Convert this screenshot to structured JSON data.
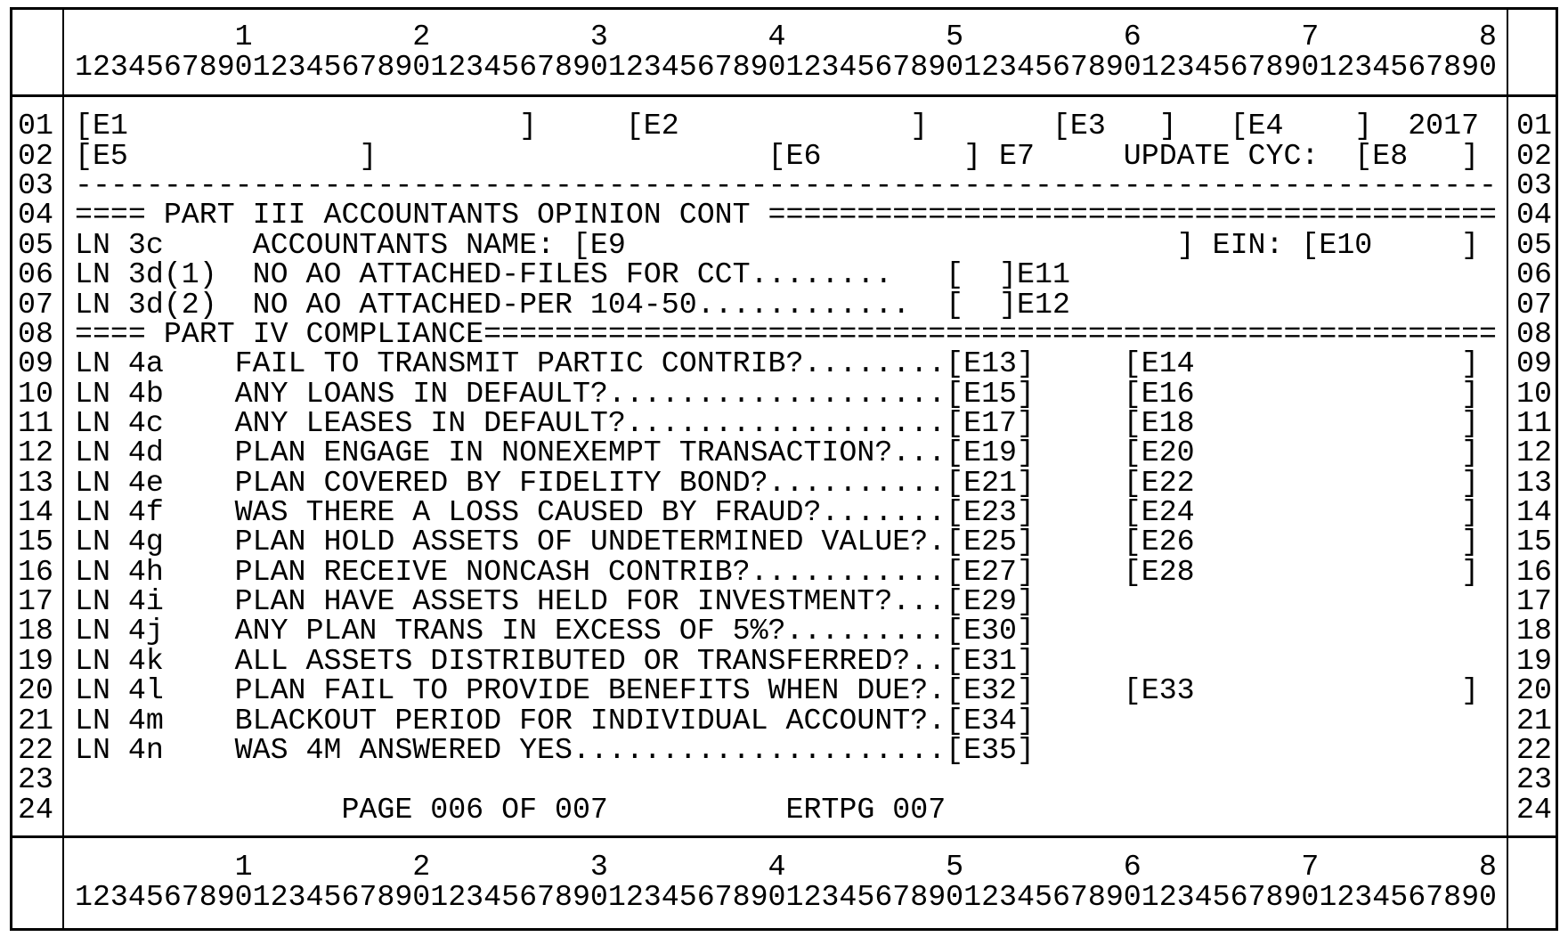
{
  "ruler": {
    "tens": "         1         2         3         4         5         6         7         8",
    "units": "12345678901234567890123456789012345678901234567890123456789012345678901234567890"
  },
  "screen": {
    "rows": [
      {
        "num": "01",
        "text": "[E1                      ]     [E2             ]       [E3   ]   [E4    ]  2017"
      },
      {
        "num": "02",
        "text": "[E5             ]                      [E6        ] E7     UPDATE CYC:  [E8   ]"
      },
      {
        "num": "03",
        "text": "--------------------------------------------------------------------------------"
      },
      {
        "num": "04",
        "text": "==== PART III ACCOUNTANTS OPINION CONT ========================================="
      },
      {
        "num": "05",
        "text": "LN 3c     ACCOUNTANTS NAME: [E9                               ] EIN: [E10     ]"
      },
      {
        "num": "06",
        "text": "LN 3d(1)  NO AO ATTACHED-FILES FOR CCT........   [  ]E11"
      },
      {
        "num": "07",
        "text": "LN 3d(2)  NO AO ATTACHED-PER 104-50............  [  ]E12"
      },
      {
        "num": "08",
        "text": "==== PART IV COMPLIANCE========================================================="
      },
      {
        "num": "09",
        "text": "LN 4a    FAIL TO TRANSMIT PARTIC CONTRIB?........[E13]     [E14               ]"
      },
      {
        "num": "10",
        "text": "LN 4b    ANY LOANS IN DEFAULT?...................[E15]     [E16               ]"
      },
      {
        "num": "11",
        "text": "LN 4c    ANY LEASES IN DEFAULT?..................[E17]     [E18               ]"
      },
      {
        "num": "12",
        "text": "LN 4d    PLAN ENGAGE IN NONEXEMPT TRANSACTION?...[E19]     [E20               ]"
      },
      {
        "num": "13",
        "text": "LN 4e    PLAN COVERED BY FIDELITY BOND?..........[E21]     [E22               ]"
      },
      {
        "num": "14",
        "text": "LN 4f    WAS THERE A LOSS CAUSED BY FRAUD?.......[E23]     [E24               ]"
      },
      {
        "num": "15",
        "text": "LN 4g    PLAN HOLD ASSETS OF UNDETERMINED VALUE?.[E25]     [E26               ]"
      },
      {
        "num": "16",
        "text": "LN 4h    PLAN RECEIVE NONCASH CONTRIB?...........[E27]     [E28               ]"
      },
      {
        "num": "17",
        "text": "LN 4i    PLAN HAVE ASSETS HELD FOR INVESTMENT?...[E29]"
      },
      {
        "num": "18",
        "text": "LN 4j    ANY PLAN TRANS IN EXCESS OF 5%?.........[E30]"
      },
      {
        "num": "19",
        "text": "LN 4k    ALL ASSETS DISTRIBUTED OR TRANSFERRED?..[E31]"
      },
      {
        "num": "20",
        "text": "LN 4l    PLAN FAIL TO PROVIDE BENEFITS WHEN DUE?.[E32]     [E33               ]"
      },
      {
        "num": "21",
        "text": "LN 4m    BLACKOUT PERIOD FOR INDIVIDUAL ACCOUNT?.[E34]"
      },
      {
        "num": "22",
        "text": "LN 4n    WAS 4M ANSWERED YES.....................[E35]"
      },
      {
        "num": "23",
        "text": ""
      },
      {
        "num": "24",
        "text": "               PAGE 006 OF 007          ERTPG 007"
      }
    ]
  }
}
